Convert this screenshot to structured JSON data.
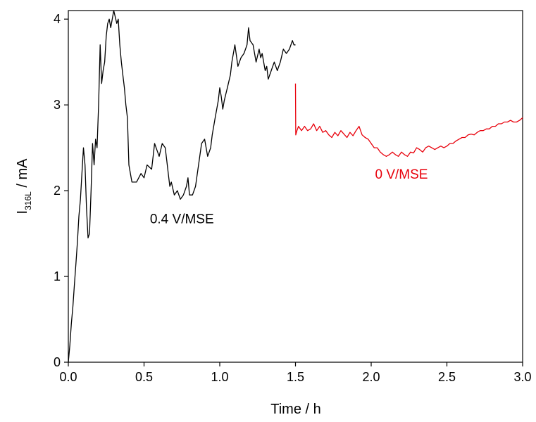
{
  "chart_data": {
    "type": "line",
    "title": "",
    "xlabel": "Time / h",
    "ylabel_main": "I",
    "ylabel_sub": "316L",
    "ylabel_unit": " / mA",
    "xlim": [
      0,
      3
    ],
    "ylim": [
      0,
      4.1
    ],
    "x_ticks": [
      0,
      0.5,
      1,
      1.5,
      2,
      2.5,
      3
    ],
    "x_tick_labels": [
      "0.0",
      "0.5",
      "1.0",
      "1.5",
      "2.0",
      "2.5",
      "3.0"
    ],
    "y_ticks": [
      0,
      1,
      2,
      3,
      4
    ],
    "y_tick_labels": [
      "0",
      "1",
      "2",
      "3",
      "4"
    ],
    "grid": false,
    "annotations": [
      {
        "text": "0.4 V/MSE",
        "x": 0.75,
        "y": 1.62,
        "color": "#000000"
      },
      {
        "text": "0 V/MSE",
        "x": 2.2,
        "y": 2.14,
        "color": "#e8000b"
      }
    ],
    "series": [
      {
        "color": "#000000",
        "x": [
          0.0,
          0.01,
          0.02,
          0.03,
          0.04,
          0.05,
          0.06,
          0.07,
          0.08,
          0.09,
          0.1,
          0.11,
          0.12,
          0.13,
          0.14,
          0.15,
          0.16,
          0.17,
          0.18,
          0.19,
          0.2,
          0.21,
          0.22,
          0.23,
          0.24,
          0.25,
          0.26,
          0.27,
          0.28,
          0.3,
          0.32,
          0.33,
          0.34,
          0.35,
          0.36,
          0.37,
          0.38,
          0.39,
          0.4,
          0.42,
          0.45,
          0.48,
          0.5,
          0.52,
          0.55,
          0.57,
          0.59,
          0.6,
          0.62,
          0.64,
          0.65,
          0.66,
          0.67,
          0.68,
          0.7,
          0.72,
          0.74,
          0.76,
          0.78,
          0.79,
          0.8,
          0.82,
          0.84,
          0.86,
          0.88,
          0.9,
          0.92,
          0.94,
          0.95,
          0.96,
          0.97,
          0.98,
          0.99,
          1.0,
          1.01,
          1.02,
          1.03,
          1.05,
          1.07,
          1.08,
          1.1,
          1.12,
          1.14,
          1.16,
          1.18,
          1.19,
          1.2,
          1.22,
          1.24,
          1.26,
          1.27,
          1.28,
          1.3,
          1.31,
          1.32,
          1.34,
          1.36,
          1.38,
          1.4,
          1.42,
          1.44,
          1.46,
          1.48,
          1.49,
          1.5
        ],
        "y": [
          0.0,
          0.2,
          0.45,
          0.65,
          0.9,
          1.15,
          1.4,
          1.7,
          1.9,
          2.2,
          2.5,
          2.3,
          1.8,
          1.45,
          1.5,
          2.0,
          2.55,
          2.3,
          2.6,
          2.5,
          3.0,
          3.7,
          3.25,
          3.4,
          3.5,
          3.8,
          3.95,
          4.0,
          3.9,
          4.1,
          3.95,
          4.0,
          3.7,
          3.5,
          3.35,
          3.2,
          3.0,
          2.85,
          2.3,
          2.1,
          2.1,
          2.2,
          2.15,
          2.3,
          2.25,
          2.55,
          2.45,
          2.4,
          2.55,
          2.5,
          2.35,
          2.2,
          2.05,
          2.1,
          1.95,
          2.0,
          1.9,
          1.95,
          2.05,
          2.15,
          1.95,
          1.95,
          2.05,
          2.3,
          2.55,
          2.6,
          2.4,
          2.5,
          2.65,
          2.75,
          2.85,
          2.95,
          3.05,
          3.2,
          3.1,
          2.95,
          3.05,
          3.2,
          3.35,
          3.5,
          3.7,
          3.45,
          3.55,
          3.6,
          3.7,
          3.9,
          3.75,
          3.7,
          3.5,
          3.65,
          3.55,
          3.6,
          3.4,
          3.45,
          3.3,
          3.4,
          3.5,
          3.4,
          3.5,
          3.65,
          3.6,
          3.65,
          3.75,
          3.7,
          3.7
        ]
      },
      {
        "color": "#e8000b",
        "x": [
          1.5,
          1.502,
          1.51,
          1.52,
          1.54,
          1.56,
          1.58,
          1.6,
          1.62,
          1.64,
          1.66,
          1.68,
          1.7,
          1.72,
          1.74,
          1.76,
          1.78,
          1.8,
          1.82,
          1.84,
          1.86,
          1.88,
          1.9,
          1.92,
          1.94,
          1.96,
          1.98,
          2.0,
          2.02,
          2.04,
          2.06,
          2.08,
          2.1,
          2.12,
          2.14,
          2.16,
          2.18,
          2.2,
          2.22,
          2.24,
          2.26,
          2.28,
          2.3,
          2.32,
          2.34,
          2.36,
          2.38,
          2.4,
          2.42,
          2.44,
          2.46,
          2.48,
          2.5,
          2.52,
          2.54,
          2.56,
          2.58,
          2.6,
          2.62,
          2.64,
          2.66,
          2.68,
          2.7,
          2.72,
          2.74,
          2.76,
          2.78,
          2.8,
          2.82,
          2.84,
          2.86,
          2.88,
          2.9,
          2.92,
          2.94,
          2.96,
          2.98,
          3.0
        ],
        "y": [
          3.25,
          2.65,
          2.7,
          2.75,
          2.7,
          2.75,
          2.7,
          2.72,
          2.78,
          2.7,
          2.75,
          2.68,
          2.7,
          2.65,
          2.62,
          2.68,
          2.64,
          2.7,
          2.66,
          2.62,
          2.68,
          2.64,
          2.7,
          2.75,
          2.65,
          2.62,
          2.6,
          2.55,
          2.5,
          2.5,
          2.45,
          2.42,
          2.4,
          2.42,
          2.45,
          2.42,
          2.4,
          2.45,
          2.42,
          2.4,
          2.45,
          2.44,
          2.5,
          2.48,
          2.45,
          2.5,
          2.52,
          2.5,
          2.48,
          2.5,
          2.52,
          2.5,
          2.52,
          2.55,
          2.55,
          2.58,
          2.6,
          2.62,
          2.62,
          2.65,
          2.66,
          2.65,
          2.68,
          2.7,
          2.7,
          2.72,
          2.72,
          2.75,
          2.75,
          2.78,
          2.78,
          2.8,
          2.8,
          2.82,
          2.8,
          2.8,
          2.82,
          2.85
        ]
      }
    ]
  }
}
